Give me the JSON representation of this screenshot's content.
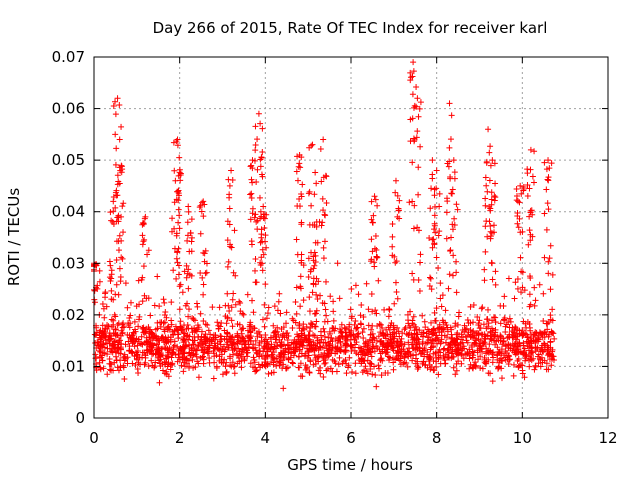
{
  "chart_data": {
    "type": "scatter",
    "title": "Day 266 of 2015, Rate Of TEC Index for receiver karl",
    "xlabel": "GPS time / hours",
    "ylabel": "ROTI / TECUs",
    "xlim": [
      0,
      12
    ],
    "ylim": [
      0,
      0.07
    ],
    "xticks": [
      0,
      2,
      4,
      6,
      8,
      10,
      12
    ],
    "yticks": [
      0,
      0.01,
      0.02,
      0.03,
      0.04,
      0.05,
      0.06,
      0.07
    ],
    "xtick_labels": [
      "0",
      "2",
      "4",
      "6",
      "8",
      "10",
      "12"
    ],
    "ytick_labels": [
      "0",
      "0.01",
      "0.02",
      "0.03",
      "0.04",
      "0.05",
      "0.06",
      "0.07"
    ],
    "grid": true,
    "marker": "+",
    "color": "#ff0000",
    "data_extent_x": [
      0.0,
      10.75
    ],
    "peaks": [
      {
        "x": 0.0,
        "y": 0.03
      },
      {
        "x": 0.45,
        "y": 0.042
      },
      {
        "x": 0.55,
        "y": 0.062
      },
      {
        "x": 0.6,
        "y": 0.054
      },
      {
        "x": 1.2,
        "y": 0.039
      },
      {
        "x": 1.9,
        "y": 0.046
      },
      {
        "x": 1.95,
        "y": 0.054
      },
      {
        "x": 2.2,
        "y": 0.041
      },
      {
        "x": 2.55,
        "y": 0.042
      },
      {
        "x": 3.2,
        "y": 0.048
      },
      {
        "x": 3.7,
        "y": 0.05
      },
      {
        "x": 3.85,
        "y": 0.059
      },
      {
        "x": 3.95,
        "y": 0.041
      },
      {
        "x": 4.8,
        "y": 0.051
      },
      {
        "x": 5.1,
        "y": 0.053
      },
      {
        "x": 5.35,
        "y": 0.054
      },
      {
        "x": 5.2,
        "y": 0.038
      },
      {
        "x": 6.55,
        "y": 0.043
      },
      {
        "x": 7.05,
        "y": 0.046
      },
      {
        "x": 7.45,
        "y": 0.069
      },
      {
        "x": 7.55,
        "y": 0.062
      },
      {
        "x": 7.9,
        "y": 0.05
      },
      {
        "x": 8.3,
        "y": 0.061
      },
      {
        "x": 8.0,
        "y": 0.048
      },
      {
        "x": 8.4,
        "y": 0.05
      },
      {
        "x": 9.2,
        "y": 0.056
      },
      {
        "x": 9.3,
        "y": 0.05
      },
      {
        "x": 9.95,
        "y": 0.045
      },
      {
        "x": 10.2,
        "y": 0.052
      },
      {
        "x": 10.6,
        "y": 0.05
      }
    ],
    "baseline": {
      "median": 0.014,
      "spread": [
        0.005,
        0.022
      ]
    },
    "sample_count": 2200
  }
}
